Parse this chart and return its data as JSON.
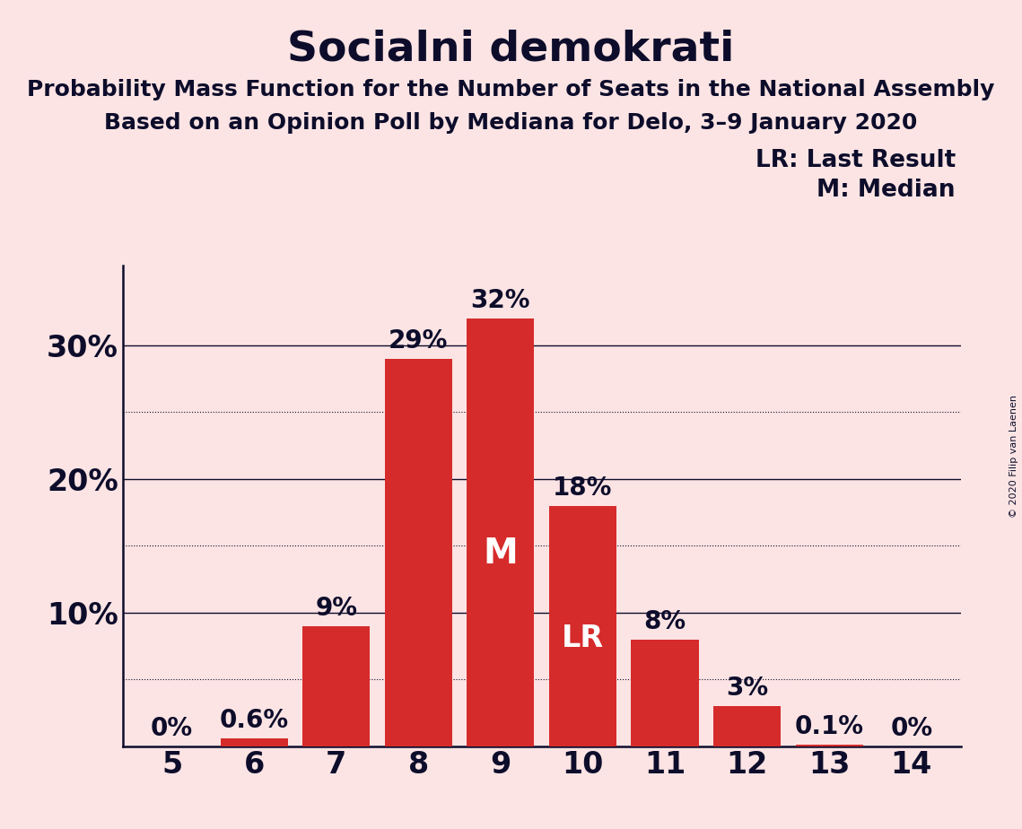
{
  "title": "Socialni demokrati",
  "subtitle1": "Probability Mass Function for the Number of Seats in the National Assembly",
  "subtitle2": "Based on an Opinion Poll by Mediana for Delo, 3–9 January 2020",
  "copyright": "© 2020 Filip van Laenen",
  "seats": [
    5,
    6,
    7,
    8,
    9,
    10,
    11,
    12,
    13,
    14
  ],
  "probabilities": [
    0.0,
    0.6,
    9.0,
    29.0,
    32.0,
    18.0,
    8.0,
    3.0,
    0.1,
    0.0
  ],
  "bar_color": "#d62b2b",
  "background_color": "#fce4e4",
  "axis_color": "#0d0d2b",
  "label_color_outside": "#0d0d2b",
  "label_color_inside": "#ffffff",
  "median_seat": 9,
  "lr_seat": 10,
  "yticks": [
    10,
    20,
    30
  ],
  "ylim": [
    0,
    36
  ],
  "xlim": [
    4.4,
    14.6
  ],
  "legend_lr": "LR: Last Result",
  "legend_m": "M: Median",
  "title_fontsize": 34,
  "subtitle_fontsize": 18,
  "ytick_fontsize": 24,
  "xtick_fontsize": 24,
  "bar_label_fontsize": 20,
  "legend_fontsize": 19,
  "bar_width": 0.82
}
